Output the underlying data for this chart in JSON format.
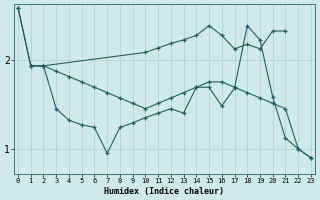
{
  "title": "",
  "xlabel": "Humidex (Indice chaleur)",
  "background_color": "#ceeaea",
  "grid_color": "#aed0d0",
  "line_color": "#206060",
  "x_ticks": [
    0,
    1,
    2,
    3,
    4,
    5,
    6,
    7,
    8,
    9,
    10,
    11,
    12,
    13,
    14,
    15,
    16,
    17,
    18,
    19,
    20,
    21,
    22,
    23
  ],
  "y_ticks": [
    1,
    2
  ],
  "ylim": [
    0.72,
    2.62
  ],
  "xlim": [
    -0.3,
    23.3
  ],
  "line1_x": [
    0,
    1,
    2,
    10,
    11,
    12,
    13,
    14,
    15,
    16,
    17,
    18,
    19,
    20,
    21
  ],
  "line1_y": [
    2.58,
    1.93,
    1.93,
    2.08,
    2.13,
    2.18,
    2.22,
    2.27,
    2.38,
    2.27,
    2.12,
    2.17,
    2.12,
    2.32,
    2.32
  ],
  "line2_x": [
    0,
    1,
    2,
    3,
    4,
    5,
    6,
    7,
    8,
    9,
    10,
    11,
    12,
    13,
    14,
    15,
    16,
    17,
    18,
    19,
    20,
    21,
    22,
    23
  ],
  "line2_y": [
    2.58,
    1.93,
    1.93,
    1.87,
    1.81,
    1.75,
    1.69,
    1.63,
    1.57,
    1.51,
    1.45,
    1.51,
    1.57,
    1.63,
    1.69,
    1.75,
    1.75,
    1.69,
    1.63,
    1.57,
    1.51,
    1.45,
    1.0,
    0.9
  ],
  "line3_x": [
    1,
    2,
    3,
    4,
    5,
    6,
    7,
    8,
    9,
    10,
    11,
    12,
    13,
    14,
    15,
    16,
    17,
    18,
    19,
    20,
    21,
    22,
    23
  ],
  "line3_y": [
    1.93,
    1.93,
    1.45,
    1.32,
    1.27,
    1.24,
    0.95,
    1.24,
    1.29,
    1.35,
    1.4,
    1.45,
    1.4,
    1.69,
    1.69,
    1.48,
    1.68,
    2.38,
    2.22,
    1.58,
    1.12,
    1.0,
    0.9
  ]
}
